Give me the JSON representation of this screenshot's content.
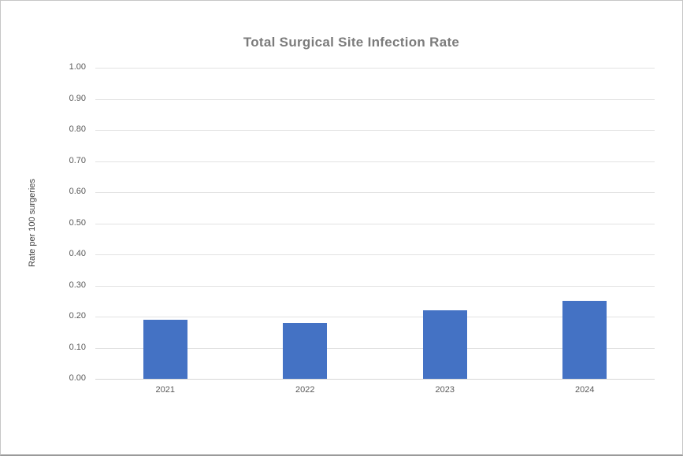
{
  "chart_data": {
    "type": "bar",
    "title": "Total Surgical Site Infection Rate",
    "xlabel": "",
    "ylabel": "Rate per 100 surgeries",
    "categories": [
      "2021",
      "2022",
      "2023",
      "2024"
    ],
    "values": [
      0.19,
      0.18,
      0.22,
      0.25
    ],
    "ylim": [
      0.0,
      1.0
    ],
    "ytick_step": 0.1,
    "ytick_labels": [
      "0.00",
      "0.10",
      "0.20",
      "0.30",
      "0.40",
      "0.50",
      "0.60",
      "0.70",
      "0.80",
      "0.90",
      "1.00"
    ],
    "grid": true,
    "legend_position": "none",
    "colors": {
      "bar": "#4472C4",
      "title_text": "#7b7b7b",
      "tick_text": "#595959",
      "axis_label_text": "#404040",
      "gridline": "#e2e2e2",
      "axis_line": "#d6d6d6",
      "background": "#ffffff"
    }
  }
}
